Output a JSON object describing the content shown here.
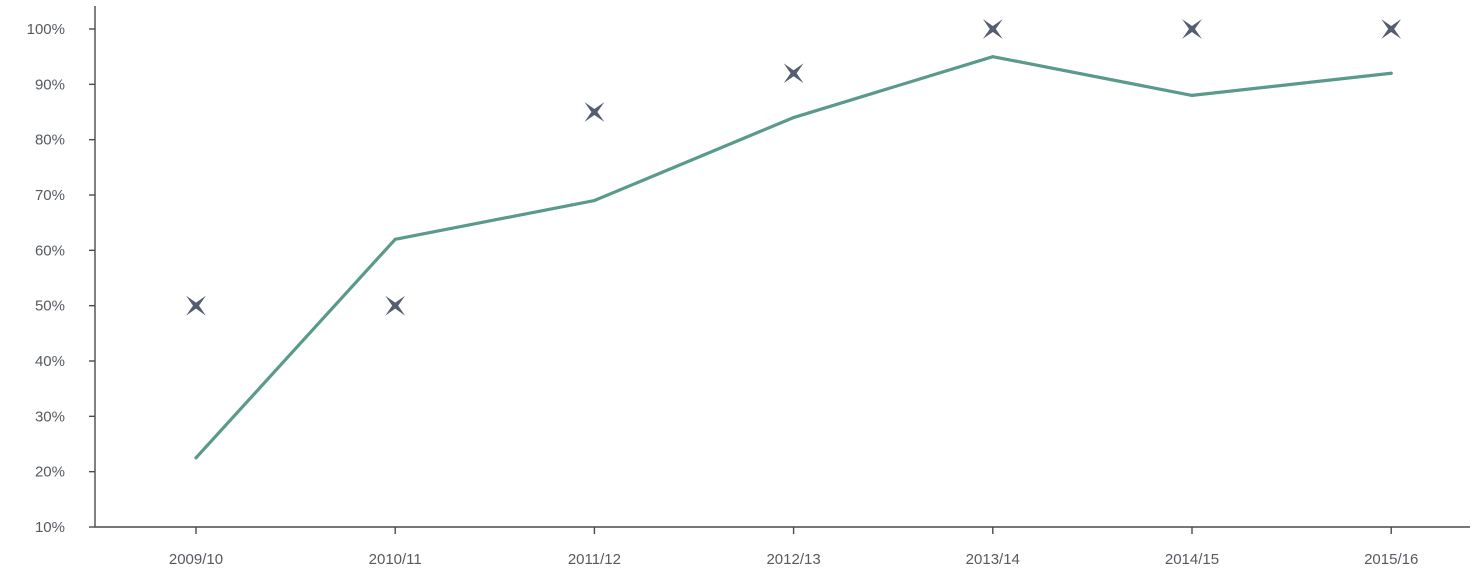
{
  "chart_data": {
    "type": "line",
    "title": "",
    "xlabel": "",
    "ylabel": "",
    "categories": [
      "2009/10",
      "2010/11",
      "2011/12",
      "2012/13",
      "2013/14",
      "2014/15",
      "2015/16"
    ],
    "ylim": [
      10,
      100
    ],
    "yticks": [
      10,
      20,
      30,
      40,
      50,
      60,
      70,
      80,
      90,
      100
    ],
    "ytick_labels": [
      "10%",
      "20%",
      "30%",
      "40%",
      "50%",
      "60%",
      "70%",
      "80%",
      "90%",
      "100%"
    ],
    "grid": false,
    "legend": "none",
    "series": [
      {
        "style": "line",
        "color": "#5a9a8c",
        "values": [
          22.5,
          62,
          69,
          84,
          95,
          88,
          92
        ]
      },
      {
        "style": "marker",
        "marker": "four-point-star",
        "color": "#555d70",
        "values": [
          50,
          50,
          85,
          92,
          100,
          100,
          100
        ]
      }
    ]
  }
}
